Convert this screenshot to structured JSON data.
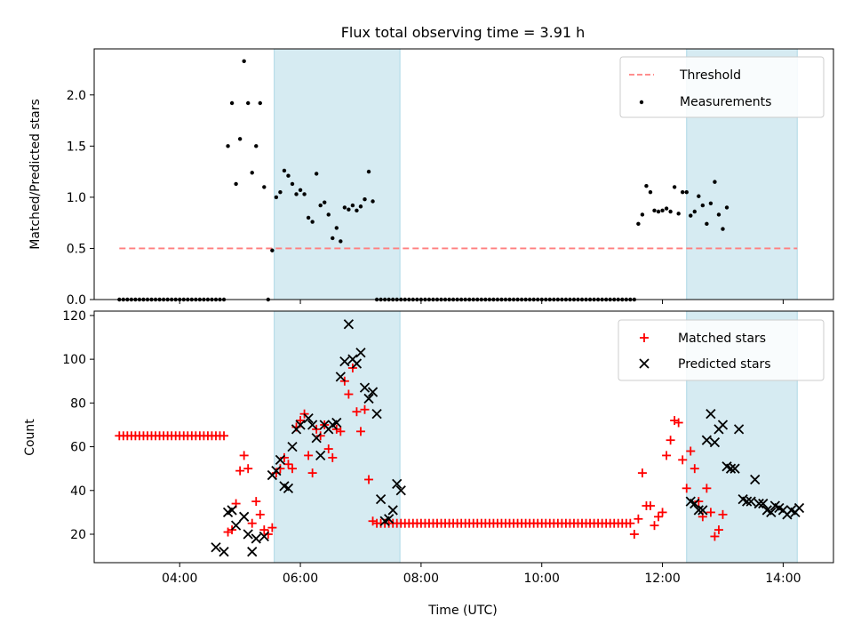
{
  "title": "Flux total observing time = 3.91 h",
  "chart_data": [
    {
      "type": "scatter",
      "panel": "top",
      "xlabel": "",
      "ylabel": "Matched/Predicted stars",
      "xlim": [
        "02:35",
        "14:50"
      ],
      "ylim": [
        0,
        2.45
      ],
      "yticks": [
        0.0,
        0.5,
        1.0,
        1.5,
        2.0
      ],
      "ytick_labels": [
        "0.0",
        "0.5",
        "1.0",
        "1.5",
        "2.0"
      ],
      "legend_position": "top-right",
      "shaded_intervals": [
        [
          "05:34",
          "07:39"
        ],
        [
          "12:24",
          "14:14"
        ]
      ],
      "series": [
        {
          "name": "Threshold",
          "kind": "dashed-line",
          "color": "#ff7f7f",
          "x": [
            "03:00",
            "14:14"
          ],
          "y": [
            0.5,
            0.5
          ]
        },
        {
          "name": "Measurements",
          "kind": "points",
          "color": "#000000",
          "start": "03:00",
          "step_minutes": 4,
          "y": [
            0,
            0,
            0,
            0,
            0,
            0,
            0,
            0,
            0,
            0,
            0,
            0,
            0,
            0,
            0,
            0,
            0,
            0,
            0,
            0,
            0,
            0,
            0,
            0,
            0,
            0,
            0,
            1.5,
            1.92,
            1.13,
            1.57,
            2.33,
            1.92,
            1.24,
            1.5,
            1.92,
            1.1,
            0,
            0.48,
            1.0,
            1.05,
            1.26,
            1.21,
            1.13,
            1.03,
            1.07,
            1.03,
            0.8,
            0.76,
            1.23,
            0.92,
            0.95,
            0.83,
            0.6,
            0.7,
            0.57,
            0.9,
            0.88,
            0.92,
            0.87,
            0.91,
            0.98,
            1.25,
            0.96,
            0,
            0,
            0,
            0,
            0,
            0,
            0,
            0,
            0,
            0,
            0,
            0,
            0,
            0,
            0,
            0,
            0,
            0,
            0,
            0,
            0,
            0,
            0,
            0,
            0,
            0,
            0,
            0,
            0,
            0,
            0,
            0,
            0,
            0,
            0,
            0,
            0,
            0,
            0,
            0,
            0,
            0,
            0,
            0,
            0,
            0,
            0,
            0,
            0,
            0,
            0,
            0,
            0,
            0,
            0,
            0,
            0,
            0,
            0,
            0,
            0,
            0,
            0,
            0,
            0,
            0.74,
            0.83,
            1.11,
            1.05,
            0.87,
            0.86,
            0.87,
            0.89,
            0.86,
            1.1,
            0.84,
            1.05,
            1.05,
            0.82,
            0.86,
            1.01,
            0.92,
            0.74,
            0.94,
            1.15,
            0.83,
            0.69,
            0.9
          ]
        }
      ]
    },
    {
      "type": "scatter",
      "panel": "bottom",
      "xlabel": "Time (UTC)",
      "ylabel": "Count",
      "xlim": [
        "02:35",
        "14:50"
      ],
      "xticks": [
        "04:00",
        "06:00",
        "08:00",
        "10:00",
        "12:00",
        "14:00"
      ],
      "ylim": [
        7,
        122
      ],
      "yticks": [
        20,
        40,
        60,
        80,
        100,
        120
      ],
      "ytick_labels": [
        "20",
        "40",
        "60",
        "80",
        "100",
        "120"
      ],
      "legend_position": "top-right",
      "shaded_intervals": [
        [
          "05:34",
          "07:39"
        ],
        [
          "12:24",
          "14:14"
        ]
      ],
      "series": [
        {
          "name": "Matched stars",
          "marker": "plus",
          "color": "#ff0000",
          "start": "03:00",
          "step_minutes": 4,
          "y": [
            65,
            65,
            65,
            65,
            65,
            65,
            65,
            65,
            65,
            65,
            65,
            65,
            65,
            65,
            65,
            65,
            65,
            65,
            65,
            65,
            65,
            65,
            65,
            65,
            65,
            65,
            65,
            21,
            22,
            34,
            49,
            56,
            50,
            25,
            35,
            29,
            22,
            20,
            23,
            48,
            50,
            55,
            52,
            50,
            69,
            72,
            75,
            56,
            48,
            68,
            65,
            70,
            59,
            55,
            68,
            67,
            90,
            84,
            96,
            76,
            67,
            77,
            45,
            26,
            25,
            25,
            25,
            25,
            25,
            25,
            25,
            25,
            25,
            25,
            25,
            25,
            25,
            25,
            25,
            25,
            25,
            25,
            25,
            25,
            25,
            25,
            25,
            25,
            25,
            25,
            25,
            25,
            25,
            25,
            25,
            25,
            25,
            25,
            25,
            25,
            25,
            25,
            25,
            25,
            25,
            25,
            25,
            25,
            25,
            25,
            25,
            25,
            25,
            25,
            25,
            25,
            25,
            25,
            25,
            25,
            25,
            25,
            25,
            25,
            25,
            25,
            25,
            25,
            20,
            27,
            48,
            33,
            33,
            24,
            28,
            30,
            56,
            63,
            72,
            71,
            54,
            41,
            58,
            50,
            35,
            28,
            41,
            30,
            19,
            22,
            29
          ]
        },
        {
          "name": "Predicted stars",
          "marker": "x",
          "color": "#000000",
          "series_points": "see x_times",
          "x_times": [
            "04:36",
            "04:44",
            "04:48",
            "04:52",
            "04:56",
            "05:04",
            "05:08",
            "05:12",
            "05:16",
            "05:24",
            "05:32",
            "05:36",
            "05:40",
            "05:44",
            "05:48",
            "05:52",
            "05:56",
            "06:00",
            "06:08",
            "06:12",
            "06:16",
            "06:20",
            "06:24",
            "06:28",
            "06:32",
            "06:36",
            "06:40",
            "06:44",
            "06:48",
            "06:52",
            "06:56",
            "07:00",
            "07:04",
            "07:08",
            "07:12",
            "07:16",
            "07:20",
            "07:24",
            "07:28",
            "07:32",
            "07:36",
            "07:40",
            "12:28",
            "12:32",
            "12:36",
            "12:40",
            "12:44",
            "12:48",
            "12:52",
            "12:56",
            "13:00",
            "13:04",
            "13:08",
            "13:12",
            "13:16",
            "13:20",
            "13:24",
            "13:28",
            "13:32",
            "13:36",
            "13:40",
            "13:44",
            "13:48",
            "13:52",
            "13:56",
            "14:00",
            "14:04",
            "14:08",
            "14:12",
            "14:16"
          ],
          "y": [
            14,
            12,
            30,
            31,
            24,
            28,
            20,
            12,
            18,
            19,
            47,
            49,
            54,
            42,
            41,
            60,
            68,
            70,
            73,
            70,
            64,
            56,
            70,
            68,
            70,
            71,
            92,
            99,
            116,
            100,
            98,
            103,
            87,
            82,
            85,
            75,
            36,
            26,
            27,
            31,
            43,
            40,
            35,
            34,
            31,
            31,
            63,
            75,
            62,
            68,
            70,
            51,
            50,
            50,
            68,
            36,
            35,
            35,
            45,
            34,
            34,
            31,
            30,
            33,
            32,
            31,
            29,
            31,
            30,
            32
          ]
        }
      ]
    }
  ]
}
